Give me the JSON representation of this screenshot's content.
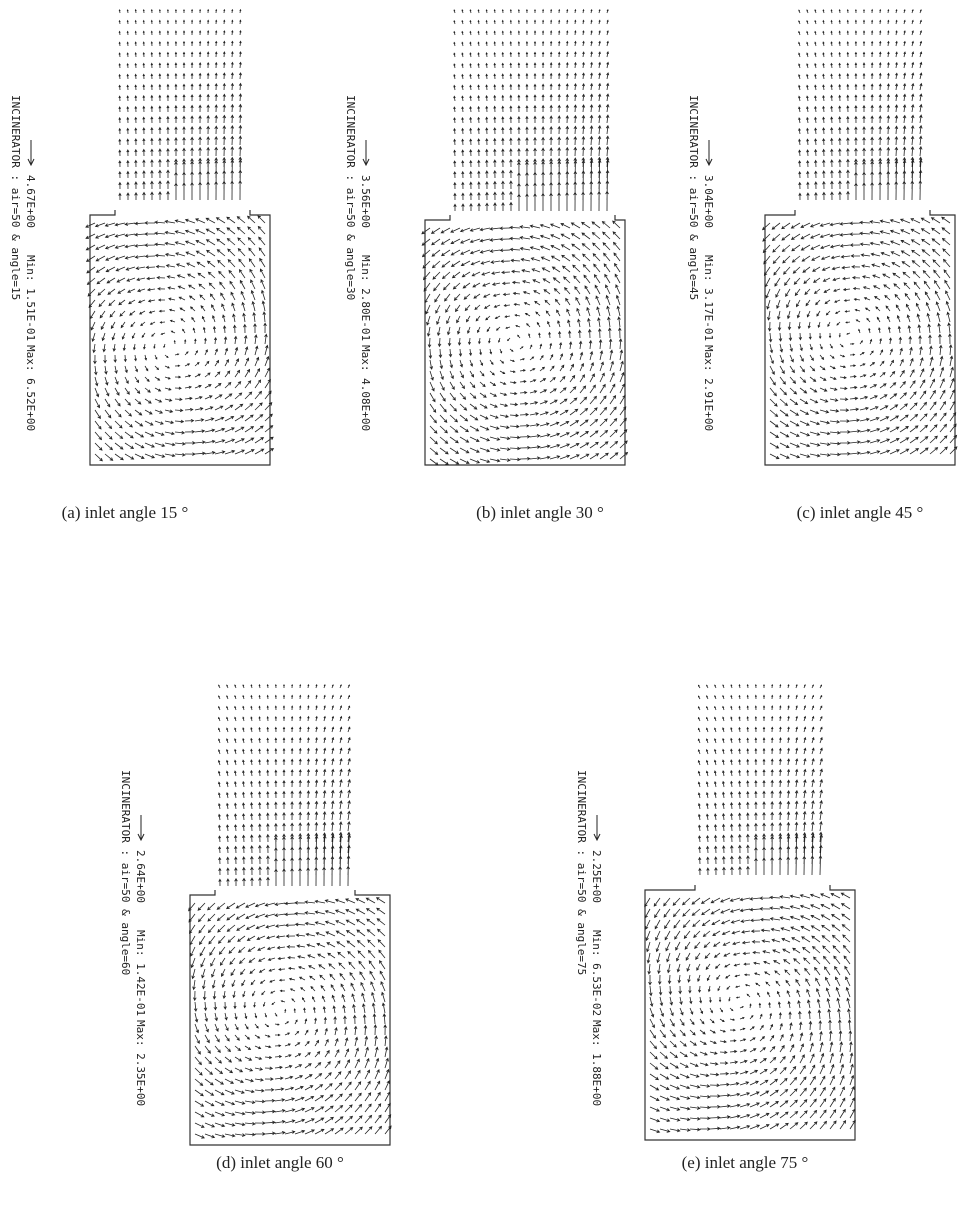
{
  "panels": [
    {
      "label": "INCINERATOR : air=50 & angle=15",
      "scale": "4.67E+00",
      "min": "Min: 1.51E-01",
      "max": "Max: 6.52E+00",
      "caption": "(a)  inlet angle 15 °"
    },
    {
      "label": "INCINERATOR : air=50 & angle=30",
      "scale": "3.56E+00",
      "min": "Min: 2.80E-01",
      "max": "Max: 4.08E+00",
      "caption": "(b) inlet angle 30 °"
    },
    {
      "label": "INCINERATOR : air=50 & angle=45",
      "scale": "3.04E+00",
      "min": "Min: 3.17E-01",
      "max": "Max: 2.91E+00",
      "caption": "(c) inlet angle 45 °"
    },
    {
      "label": "INCINERATOR : air=50 & angle=60",
      "scale": "2.64E+00",
      "min": "Min: 1.42E-01",
      "max": "Max: 2.35E+00",
      "caption": "(d) inlet angle 60 °"
    },
    {
      "label": "INCINERATOR : air=50 & angle=75",
      "scale": "2.25E+00",
      "min": "Min: 6.53E-02",
      "max": "Max: 1.88E+00",
      "caption": "(e) inlet angle 75 °"
    }
  ]
}
